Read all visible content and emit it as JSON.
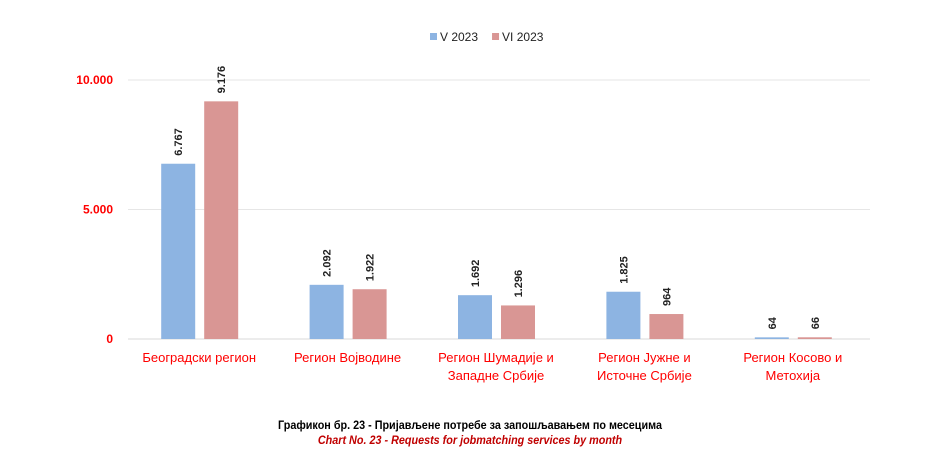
{
  "chart_data": {
    "type": "bar",
    "categories": [
      [
        "Београдски регион"
      ],
      [
        "Регион Војводине"
      ],
      [
        "Регион Шумадије и",
        "Западне Србије"
      ],
      [
        "Регион Јужне и",
        "Источне Србије"
      ],
      [
        "Регион Косово и",
        "Метохија"
      ]
    ],
    "series": [
      {
        "name": "V 2023",
        "values": [
          6767,
          2092,
          1692,
          1825,
          64
        ],
        "labels": [
          "6.767",
          "2.092",
          "1.692",
          "1.825",
          "64"
        ],
        "color": "#8db4e2"
      },
      {
        "name": "VI 2023",
        "values": [
          9176,
          1922,
          1296,
          964,
          66
        ],
        "labels": [
          "9.176",
          "1.922",
          "1.296",
          "964",
          "66"
        ],
        "color": "#d99694"
      }
    ],
    "yticks": [
      0,
      5000,
      10000
    ],
    "ytick_labels": [
      "0",
      "5.000",
      "10.000"
    ],
    "ylim": [
      0,
      10000
    ],
    "grid": true,
    "legend": "top",
    "label_color": "#ff0000"
  },
  "caption": {
    "sr": "Графикон бр. 23 - Пријављене потребе за запошљавањем по месецима",
    "en": "Chart No. 23 -  Requests for jobmatching services by month"
  }
}
